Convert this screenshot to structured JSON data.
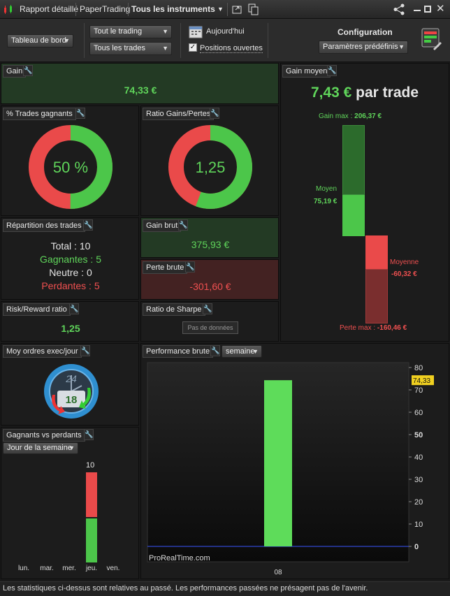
{
  "titlebar": {
    "report": "Rapport détaillé",
    "account": "PaperTrading",
    "instruments": "Tous les instruments"
  },
  "toolbar": {
    "view": "Tableau de bord",
    "trading": "Tout le trading",
    "trades": "Tous les trades",
    "today": "Aujourd'hui",
    "open_positions": "Positions ouvertes",
    "config_title": "Configuration",
    "preset": "Paramètres prédéfinis"
  },
  "gain": {
    "title": "Gain",
    "value": "74,33 €"
  },
  "win_pct": {
    "title": "% Trades gagnants",
    "value": "50 %",
    "fraction": 0.5
  },
  "ratio": {
    "title": "Ratio Gains/Pertes",
    "value": "1,25",
    "fraction": 0.556
  },
  "avg_gain": {
    "title": "Gain moyen",
    "value": "7,43 €",
    "suffix": "par trade",
    "max_gain_label": "Gain max :",
    "max_gain": "206,37 €",
    "avg_label": "Moyen",
    "avg_value": "75,19 €",
    "avg_loss_label": "Moyenne",
    "avg_loss_value": "-60,32 €",
    "max_loss_label": "Perte max :",
    "max_loss": "-160,46 €"
  },
  "distribution": {
    "title": "Répartition des trades",
    "total_label": "Total :",
    "total": "10",
    "win_label": "Gagnantes :",
    "win": "5",
    "neutral_label": "Neutre :",
    "neutral": "0",
    "loss_label": "Perdantes :",
    "loss": "5"
  },
  "gross_gain": {
    "title": "Gain brut",
    "value": "375,93 €"
  },
  "gross_loss": {
    "title": "Perte brute",
    "value": "-301,60 €"
  },
  "risk_reward": {
    "title": "Risk/Reward ratio",
    "value": "1,25"
  },
  "sharpe": {
    "title": "Ratio de Sharpe",
    "no_data": "Pas de données"
  },
  "orders": {
    "title": "Moy ordres exec/jour",
    "clock_top": "24",
    "count": "18"
  },
  "winners_losers": {
    "title": "Gagnants vs perdants",
    "select": "Jour de la semaine",
    "top_label": "10",
    "days": [
      "lun.",
      "mar.",
      "mer.",
      "jeu.",
      "ven."
    ]
  },
  "performance": {
    "title": "Performance brute",
    "period": "semaine",
    "watermark": "ProRealTime.com",
    "current_label": "74,33"
  },
  "chart_data": {
    "type": "bar",
    "categories": [
      "08"
    ],
    "values": [
      74.33
    ],
    "ylim": [
      0,
      80
    ],
    "yticks": [
      0,
      10,
      20,
      30,
      40,
      50,
      60,
      70,
      80
    ],
    "grid": false
  },
  "footer": "Les statistiques ci-dessus sont relatives au passé. Les performances passées ne présagent pas de l'avenir."
}
